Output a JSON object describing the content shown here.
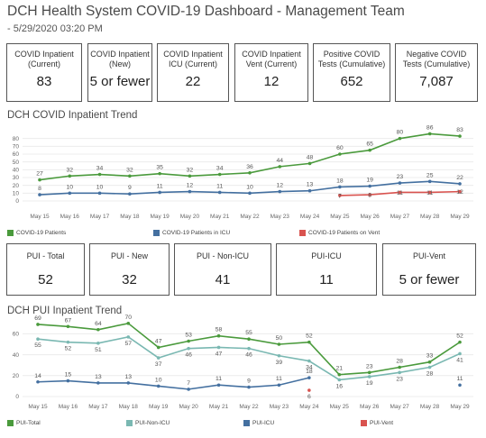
{
  "header": {
    "title": "DCH Health System COVID-19 Dashboard - Management Team",
    "subtitle": "- 5/29/2020 03:20 PM"
  },
  "kpis_top": [
    {
      "label": "COVID Inpatient (Current)",
      "value": "83"
    },
    {
      "label": "COVID Inpatient (New)",
      "value": "5 or fewer"
    },
    {
      "label": "COVID Inpatient ICU (Current)",
      "value": "22"
    },
    {
      "label": "COVID Inpatient Vent (Current)",
      "value": "12"
    },
    {
      "label": "Positive COVID Tests (Cumulative)",
      "value": "652"
    },
    {
      "label": "Negative COVID Tests (Cumulative)",
      "value": "7,087"
    }
  ],
  "kpis_pui": [
    {
      "label": "PUI - Total",
      "value": "52"
    },
    {
      "label": "PUI - New",
      "value": "32"
    },
    {
      "label": "PUI - Non-ICU",
      "value": "41"
    },
    {
      "label": "PUI-ICU",
      "value": "11"
    },
    {
      "label": "PUI-Vent",
      "value": "5 or fewer"
    }
  ],
  "colors": {
    "green": "#4a9a3c",
    "teal": "#7ab8b2",
    "blue": "#4470a0",
    "red": "#d9534f"
  },
  "chart_data": [
    {
      "type": "line",
      "title": "DCH COVID Inpatient Trend",
      "categories": [
        "May 15",
        "May 16",
        "May 17",
        "May 18",
        "May 19",
        "May 20",
        "May 21",
        "May 22",
        "May 23",
        "May 24",
        "May 25",
        "May 26",
        "May 27",
        "May 28",
        "May 29"
      ],
      "ylim": [
        0,
        90
      ],
      "yticks": [
        0,
        10,
        20,
        30,
        40,
        50,
        60,
        70,
        80
      ],
      "grid": true,
      "series": [
        {
          "name": "COVID-19 Patients",
          "color": "#4a9a3c",
          "values": [
            27,
            32,
            34,
            32,
            35,
            32,
            34,
            36,
            44,
            48,
            60,
            65,
            80,
            86,
            83
          ]
        },
        {
          "name": "COVID-19 Patients in ICU",
          "color": "#4470a0",
          "values": [
            8,
            10,
            10,
            9,
            11,
            12,
            11,
            10,
            12,
            13,
            18,
            19,
            23,
            25,
            22
          ]
        },
        {
          "name": "COVID-19 Patients on Vent",
          "color": "#d9534f",
          "values": [
            null,
            null,
            null,
            null,
            null,
            null,
            null,
            null,
            null,
            null,
            7,
            8,
            11,
            11,
            12
          ]
        }
      ],
      "legend": "bottom"
    },
    {
      "type": "line",
      "title": "DCH PUI Inpatient Trend",
      "categories": [
        "May 15",
        "May 16",
        "May 17",
        "May 18",
        "May 19",
        "May 20",
        "May 21",
        "May 22",
        "May 23",
        "May 24",
        "May 25",
        "May 26",
        "May 27",
        "May 28",
        "May 29"
      ],
      "ylim": [
        0,
        75
      ],
      "yticks": [
        0,
        20,
        40,
        60
      ],
      "grid": true,
      "series": [
        {
          "name": "PUI-Total",
          "color": "#4a9a3c",
          "values": [
            69,
            67,
            64,
            70,
            47,
            53,
            58,
            55,
            50,
            52,
            21,
            23,
            28,
            33,
            52
          ]
        },
        {
          "name": "PUI-Non-ICU",
          "color": "#7ab8b2",
          "values": [
            55,
            52,
            51,
            57,
            37,
            46,
            47,
            46,
            39,
            34,
            16,
            19,
            23,
            28,
            41
          ]
        },
        {
          "name": "PUI-ICU",
          "color": "#4470a0",
          "values": [
            14,
            15,
            13,
            13,
            10,
            7,
            11,
            9,
            11,
            18,
            null,
            null,
            null,
            null,
            11
          ]
        },
        {
          "name": "PUI-Vent",
          "color": "#d9534f",
          "values": [
            null,
            null,
            null,
            null,
            null,
            null,
            null,
            null,
            null,
            6,
            null,
            null,
            null,
            null,
            null
          ]
        }
      ],
      "legend": "bottom"
    }
  ]
}
